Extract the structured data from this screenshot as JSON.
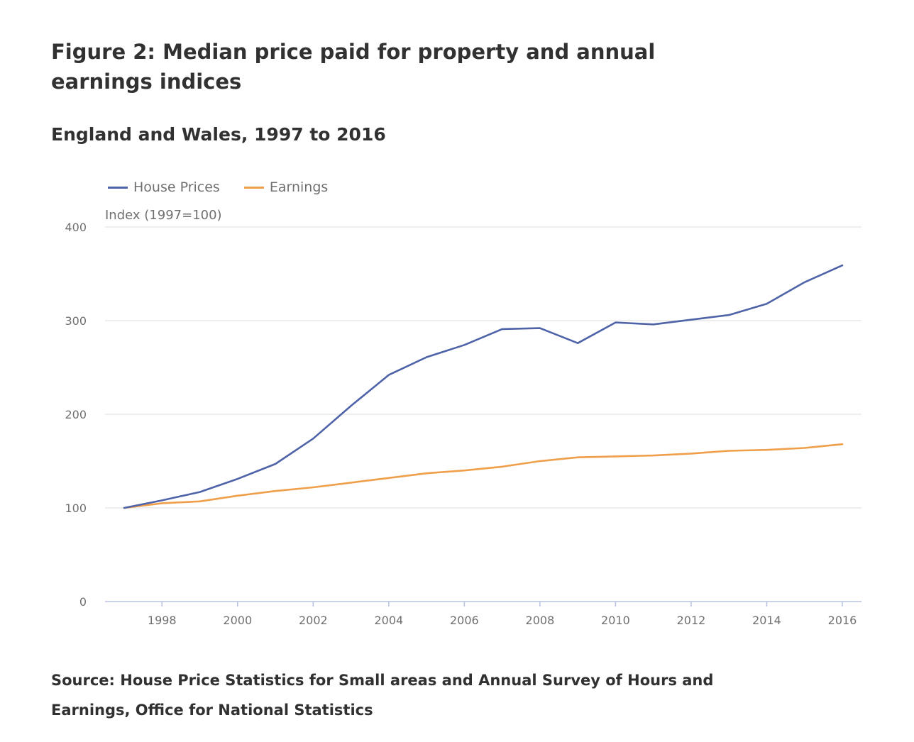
{
  "figure": {
    "title": "Figure 2: Median price paid for property and annual earnings indices",
    "subtitle": "England and Wales, 1997 to 2016",
    "source": "Source: House Price Statistics for Small areas and Annual Survey of Hours and Earnings, Office for National Statistics"
  },
  "colors": {
    "house": "#4f63a8",
    "earnings": "#ef9f4a",
    "grid": "#e8e8e8",
    "axis": "#b8c2e0",
    "tick_text": "#707071"
  },
  "chart_data": {
    "type": "line",
    "ylabel": "Index (1997=100)",
    "xlabel": "",
    "ylim": [
      0,
      400
    ],
    "yticks": [
      0,
      100,
      200,
      300,
      400
    ],
    "xlim": [
      1997,
      2016
    ],
    "xticks": [
      1998,
      2000,
      2002,
      2004,
      2006,
      2008,
      2010,
      2012,
      2014,
      2016
    ],
    "grid": true,
    "legend_position": "top-left",
    "x": [
      1997,
      1998,
      1999,
      2000,
      2001,
      2002,
      2003,
      2004,
      2005,
      2006,
      2007,
      2008,
      2009,
      2010,
      2011,
      2012,
      2013,
      2014,
      2015,
      2016
    ],
    "series": [
      {
        "name": "House Prices",
        "color": "#4f63a8",
        "values": [
          100,
          108,
          117,
          131,
          147,
          174,
          209,
          242,
          261,
          274,
          291,
          292,
          276,
          298,
          296,
          301,
          306,
          318,
          341,
          359
        ]
      },
      {
        "name": "Earnings",
        "color": "#ef9f4a",
        "values": [
          100,
          105,
          107,
          113,
          118,
          122,
          127,
          132,
          137,
          140,
          144,
          150,
          154,
          155,
          156,
          158,
          161,
          162,
          164,
          168
        ]
      }
    ]
  }
}
